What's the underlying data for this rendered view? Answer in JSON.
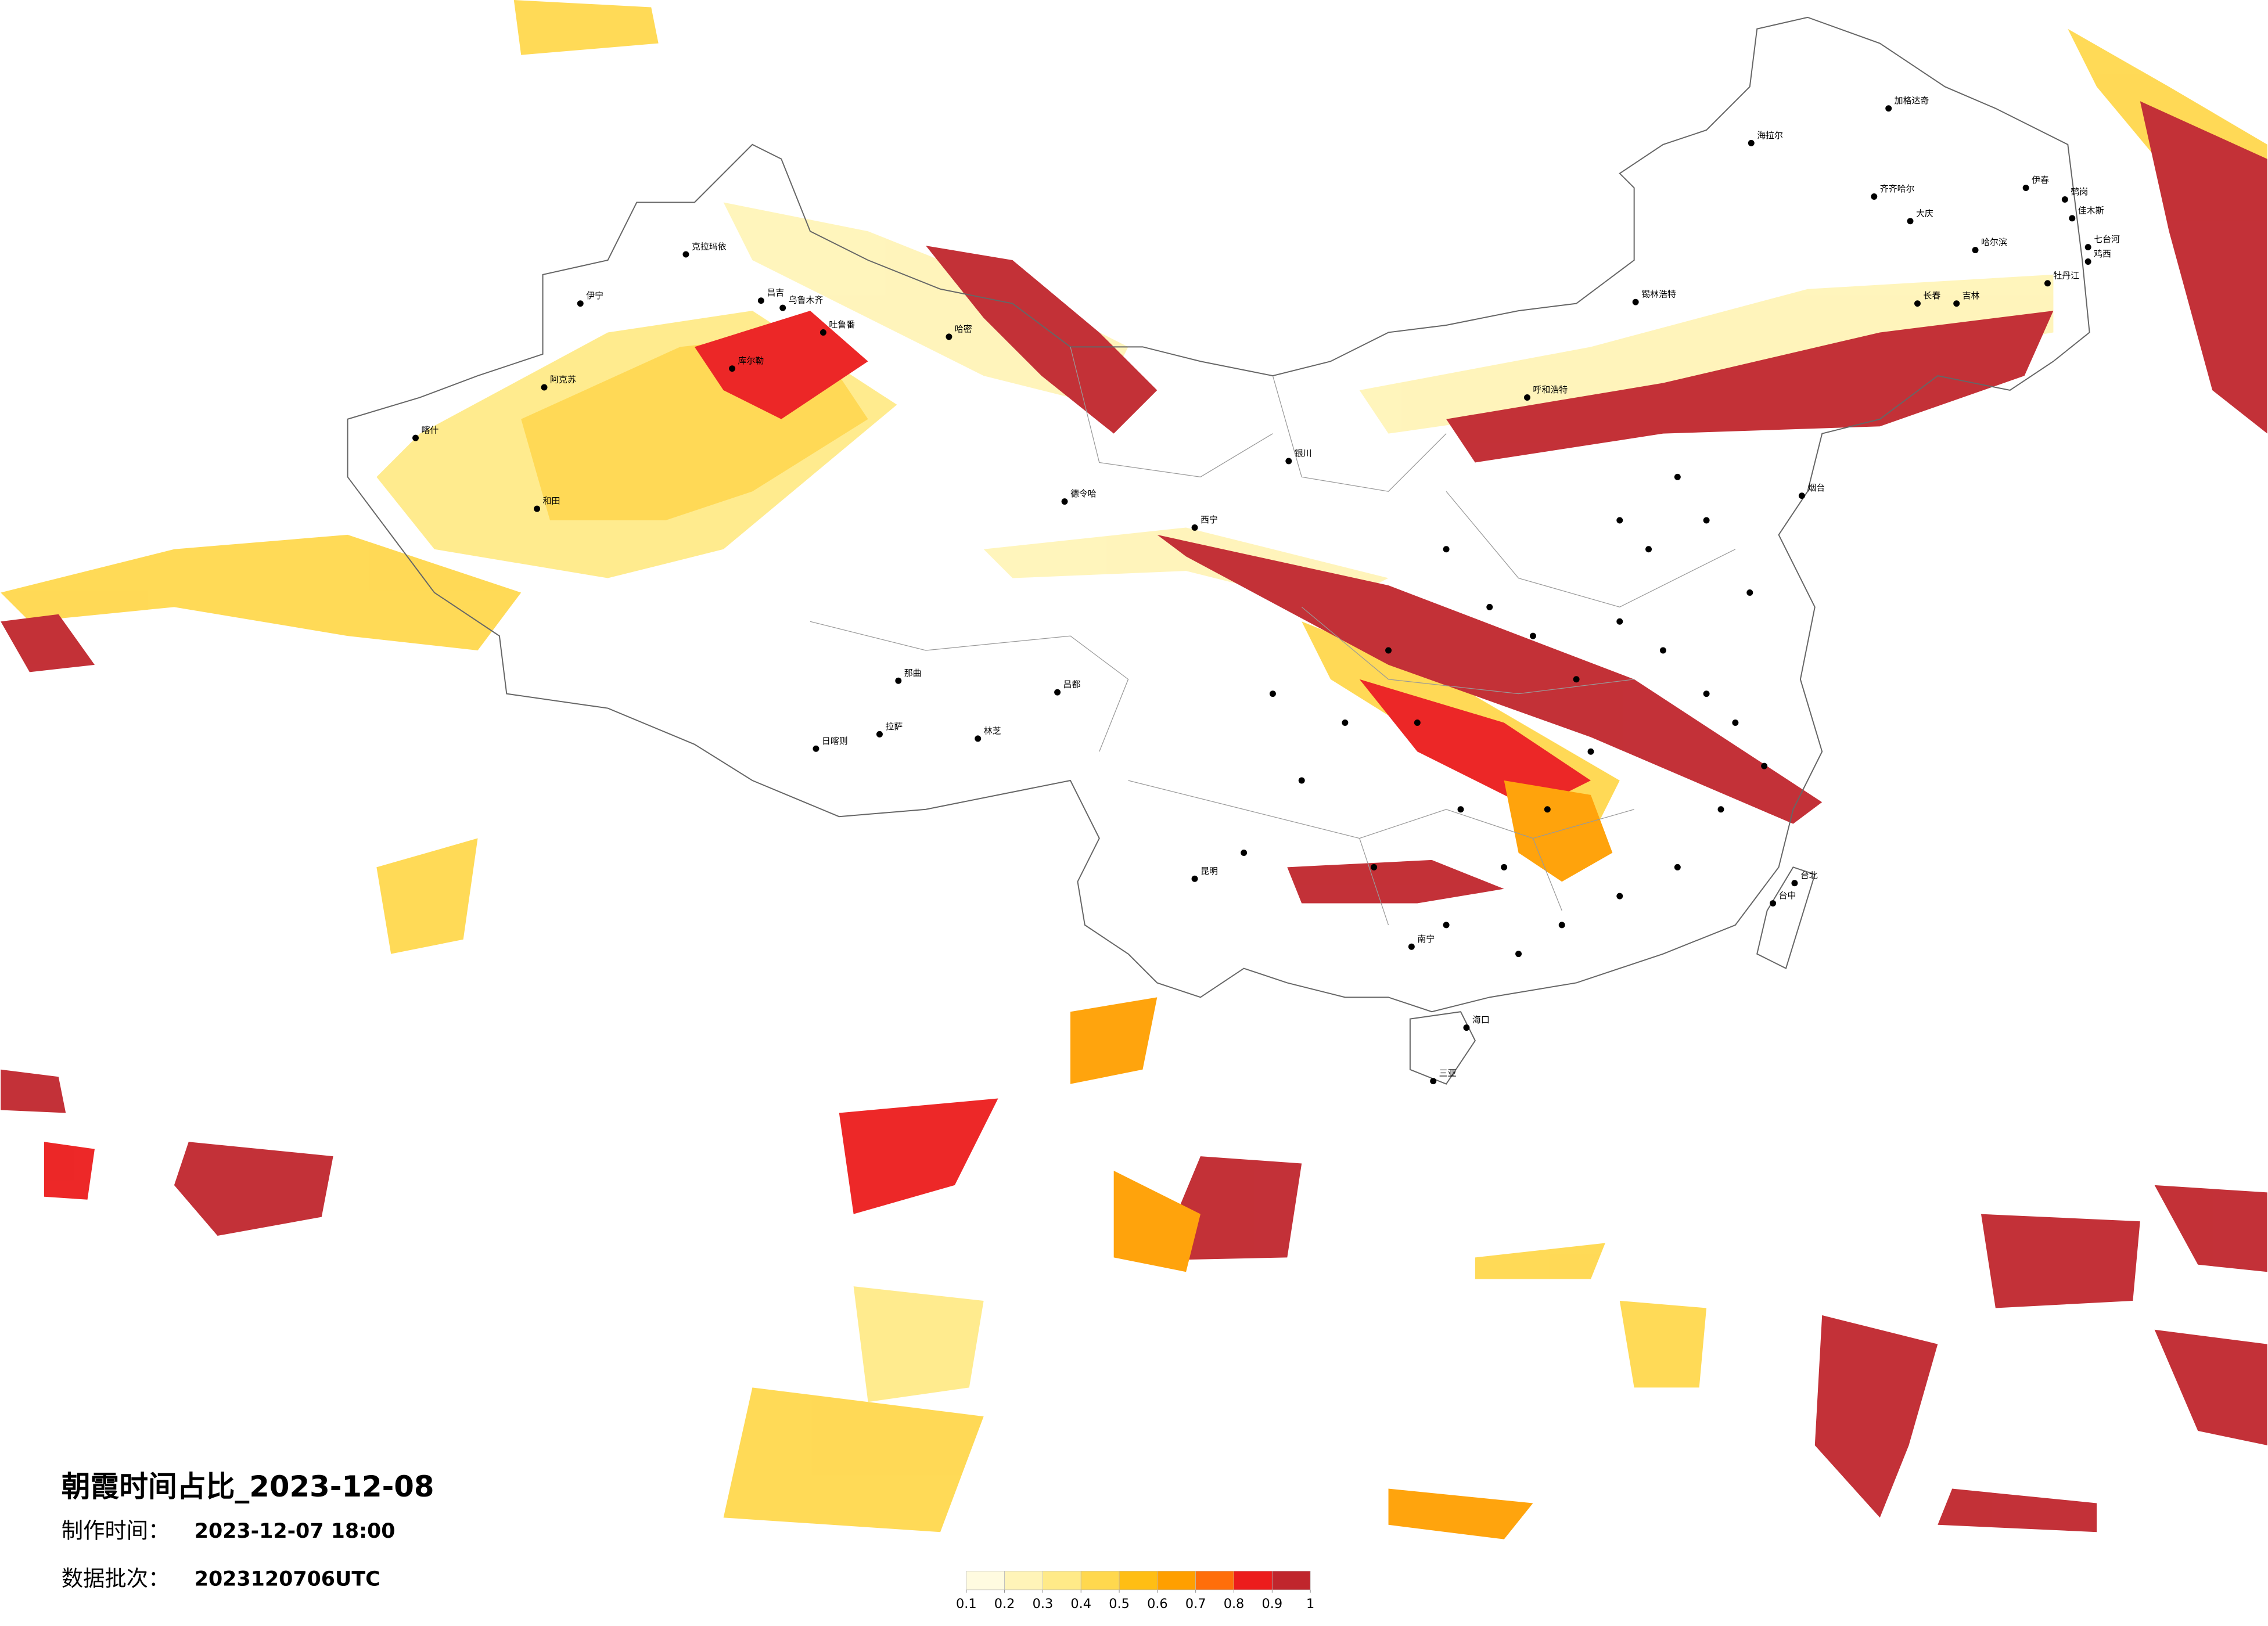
{
  "title": "朝霞时间占比_2023-12-08",
  "made_label": "制作时间：",
  "made_time": "2023-12-07 18:00",
  "batch_label": "数据批次：",
  "batch": "2023120706UTC",
  "legend": {
    "ticks": [
      0.1,
      0.2,
      0.3,
      0.4,
      0.5,
      0.6,
      0.7,
      0.8,
      0.9,
      1
    ],
    "colors": [
      "#fffbe0",
      "#fff4b8",
      "#ffea88",
      "#ffd84e",
      "#ffbe14",
      "#ff9f00",
      "#ff6e0a",
      "#ec1c1c",
      "#c0262d"
    ]
  },
  "cities": [
    "伊宁",
    "克拉玛依",
    "昌吉",
    "乌鲁木齐",
    "吐鲁番",
    "哈密",
    "阿克苏",
    "喀什",
    "和田",
    "库尔勒",
    "德令哈",
    "日喀则",
    "拉萨",
    "那曲",
    "林芝",
    "昌都",
    "西宁",
    "银川",
    "呼和浩特",
    "锡林浩特",
    "海拉尔",
    "加格达奇",
    "齐齐哈尔",
    "大庆",
    "伊春",
    "鹤岗",
    "佳木斯",
    "七台河",
    "鸡西",
    "哈尔滨",
    "长春",
    "吉林",
    "牡丹江",
    "烟台",
    "昆明",
    "南宁",
    "海口",
    "三亚",
    "台北",
    "台中"
  ]
}
